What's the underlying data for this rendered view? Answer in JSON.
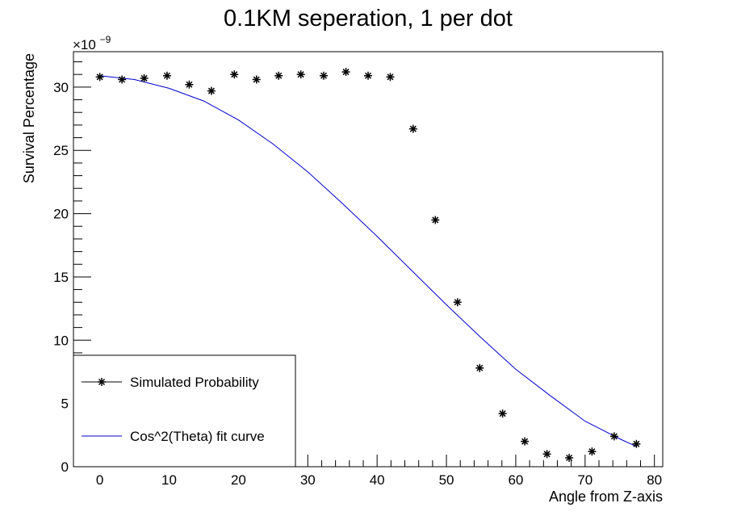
{
  "chart_data": {
    "type": "scatter",
    "title": "0.1KM seperation, 1 per dot",
    "xlabel": "Angle from Z-axis",
    "ylabel": "Survival Percentage",
    "y_exponent_prefix": "×10",
    "y_exponent_power": "−9",
    "xlim": [
      -3.8,
      81.2
    ],
    "ylim": [
      0,
      32.8
    ],
    "x_ticks": [
      0,
      10,
      20,
      30,
      40,
      50,
      60,
      70,
      80
    ],
    "x_tick_labels": [
      "0",
      "10",
      "20",
      "30",
      "40",
      "50",
      "60",
      "70",
      "80"
    ],
    "y_ticks": [
      0,
      5,
      10,
      15,
      20,
      25,
      30
    ],
    "y_tick_labels": [
      "0",
      "5",
      "10",
      "15",
      "20",
      "25",
      "30"
    ],
    "grid": false,
    "legend_position": "bottom-left",
    "series": [
      {
        "name": "Simulated Probability",
        "kind": "markers",
        "marker": "star",
        "color": "#000000",
        "x": [
          0,
          3.2,
          6.4,
          9.7,
          12.9,
          16.1,
          19.4,
          22.6,
          25.8,
          29.0,
          32.3,
          35.5,
          38.7,
          41.9,
          45.2,
          48.4,
          51.6,
          54.8,
          58.1,
          61.3,
          64.5,
          67.7,
          71.0,
          74.2,
          77.4
        ],
        "y": [
          30.8,
          30.6,
          30.7,
          30.9,
          30.2,
          29.7,
          31.0,
          30.6,
          30.9,
          31.0,
          30.9,
          31.2,
          30.9,
          30.8,
          26.7,
          19.5,
          13.0,
          7.8,
          4.2,
          2.0,
          1.0,
          0.7,
          1.2,
          2.4,
          1.8
        ]
      },
      {
        "name": "Cos^2(Theta) fit curve",
        "kind": "line",
        "color": "#0000cc",
        "x": [
          0,
          5,
          10,
          15,
          20,
          25,
          30,
          35,
          40,
          45,
          50,
          55,
          60,
          65,
          70,
          75,
          77.4
        ],
        "y": [
          30.9,
          30.6,
          29.9,
          28.9,
          27.4,
          25.5,
          23.3,
          20.8,
          18.2,
          15.5,
          12.8,
          10.2,
          7.7,
          5.6,
          3.6,
          2.2,
          1.6
        ]
      }
    ]
  }
}
